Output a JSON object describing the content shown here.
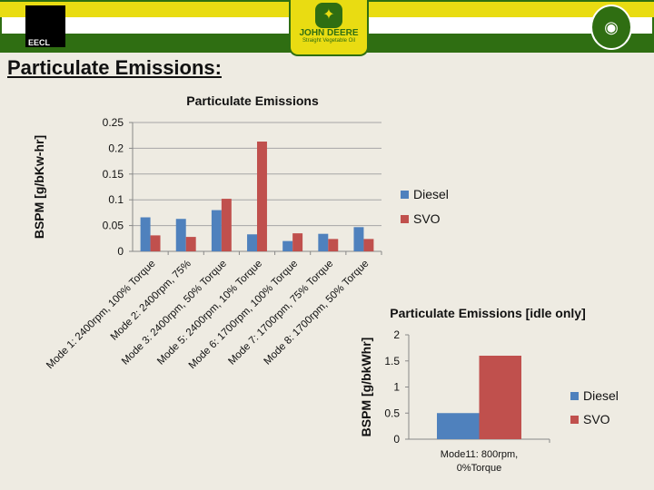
{
  "header": {
    "left_logo": "EECL",
    "center_logo_line1": "JOHN DEERE",
    "center_logo_line2": "Straight Vegetable Oil",
    "right_logo": "ram"
  },
  "slide_title": "Particulate Emissions:",
  "chart_data": [
    {
      "type": "bar",
      "title": "Particulate Emissions",
      "ylabel": "BSPM [g/bKw-hr]",
      "xlabel": "",
      "ylim": [
        0,
        0.25
      ],
      "yticks": [
        "0",
        "0.05",
        "0.1",
        "0.15",
        "0.2",
        "0.25"
      ],
      "grid": true,
      "legend": "right",
      "categories": [
        "Mode 1: 2400rpm, 100% Torque",
        "Mode 2: 2400rpm, 75%",
        "Mode 3: 2400rpm, 50% Torque",
        "Mode 5: 2400rpm, 10% Torque",
        "Mode 6: 1700rpm, 100% Torque",
        "Mode 7: 1700rpm, 75% Torque",
        "Mode 8: 1700rpm, 50% Torque"
      ],
      "series": [
        {
          "name": "Diesel",
          "color": "#4f81bd",
          "values": [
            0.066,
            0.063,
            0.08,
            0.033,
            0.02,
            0.034,
            0.047
          ]
        },
        {
          "name": "SVO",
          "color": "#c0504d",
          "values": [
            0.031,
            0.028,
            0.102,
            0.213,
            0.035,
            0.024,
            0.024
          ]
        }
      ]
    },
    {
      "type": "bar",
      "title": "Particulate Emissions [idle only]",
      "ylabel": "BSPM [g/bkWhr]",
      "xlabel": "",
      "ylim": [
        0,
        2
      ],
      "yticks": [
        "0",
        "0.5",
        "1",
        "1.5",
        "2"
      ],
      "grid": false,
      "legend": "right",
      "categories": [
        "Mode11: 800rpm, 0%Torque"
      ],
      "series": [
        {
          "name": "Diesel",
          "color": "#4f81bd",
          "values": [
            0.5
          ]
        },
        {
          "name": "SVO",
          "color": "#c0504d",
          "values": [
            1.6
          ]
        }
      ]
    }
  ]
}
